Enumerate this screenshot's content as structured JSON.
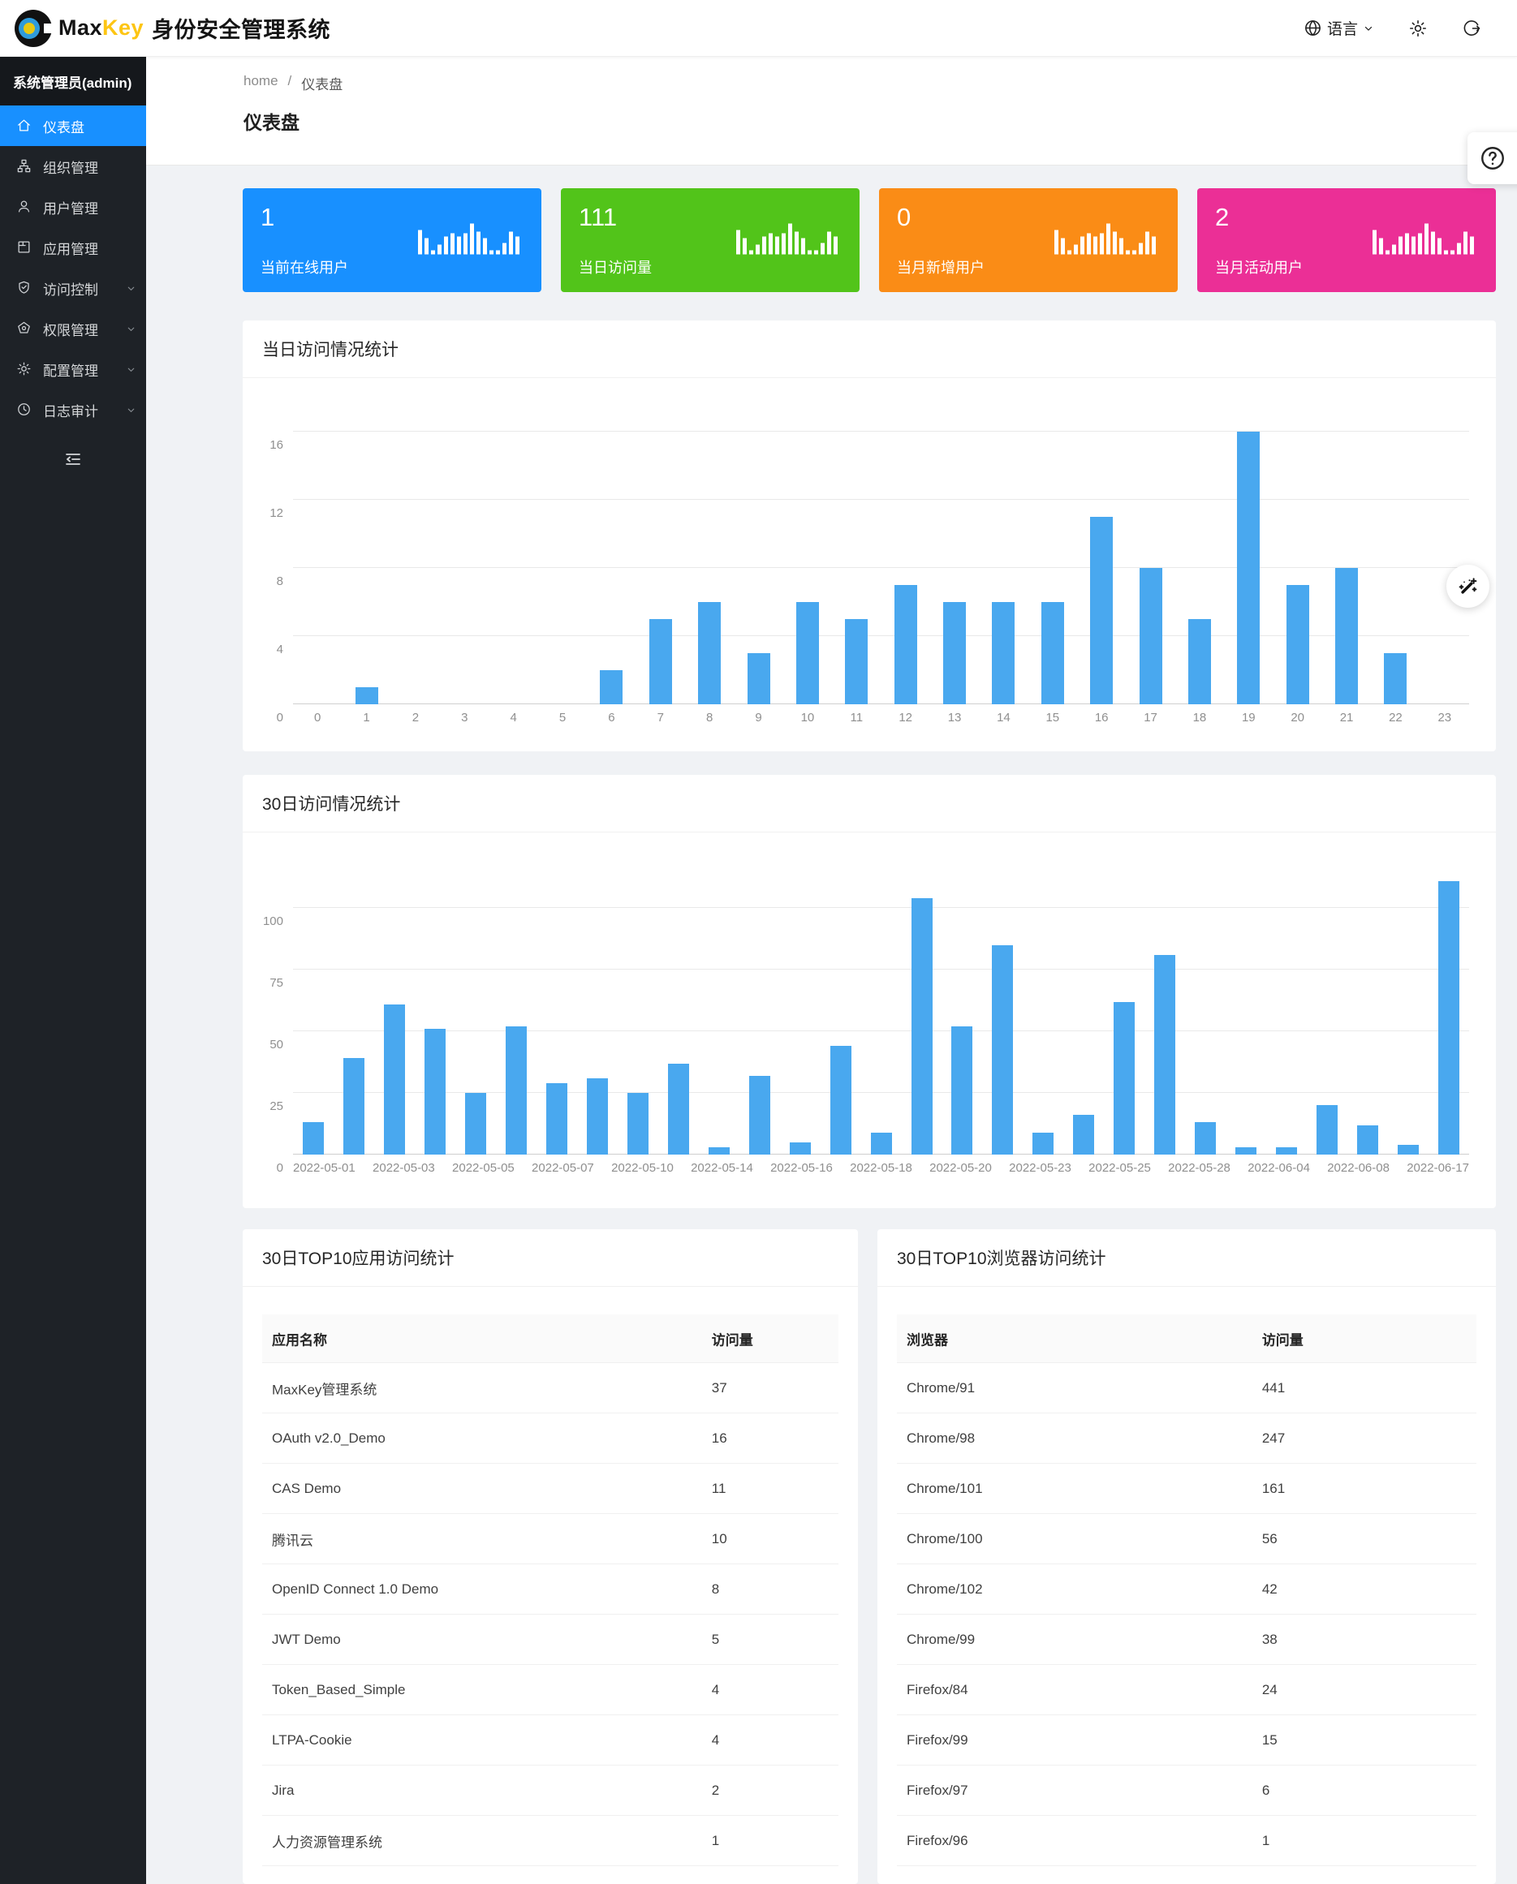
{
  "header": {
    "brand": {
      "max": "Max",
      "key": "Key",
      "product": "身份安全管理系统"
    },
    "actions": {
      "language_label": "语言",
      "language_icon": "globe-icon",
      "language_caret_icon": "chevron-down-icon",
      "settings_icon": "gear-icon",
      "logout_icon": "logout-icon"
    }
  },
  "sidebar": {
    "admin_label": "系统管理员(admin)",
    "items": [
      {
        "label": "仪表盘",
        "icon": "home-icon",
        "active": true,
        "has_children": false
      },
      {
        "label": "组织管理",
        "icon": "cluster-icon",
        "active": false,
        "has_children": false
      },
      {
        "label": "用户管理",
        "icon": "user-icon",
        "active": false,
        "has_children": false
      },
      {
        "label": "应用管理",
        "icon": "appstore-icon",
        "active": false,
        "has_children": false
      },
      {
        "label": "访问控制",
        "icon": "shield-icon",
        "active": false,
        "has_children": true
      },
      {
        "label": "权限管理",
        "icon": "permission-icon",
        "active": false,
        "has_children": true
      },
      {
        "label": "配置管理",
        "icon": "gear-icon",
        "active": false,
        "has_children": true
      },
      {
        "label": "日志审计",
        "icon": "clock-icon",
        "active": false,
        "has_children": true
      }
    ],
    "collapse_icon": "menu-fold-icon"
  },
  "breadcrumb": {
    "home": "home",
    "separator": "/",
    "current": "仪表盘"
  },
  "page_title": "仪表盘",
  "stat_cards": [
    {
      "value": "1",
      "label": "当前在线用户",
      "color": "#1890ff",
      "icon": "mini-bar-chart-icon"
    },
    {
      "value": "111",
      "label": "当日访问量",
      "color": "#52c41a",
      "icon": "mini-bar-chart-icon"
    },
    {
      "value": "0",
      "label": "当月新增用户",
      "color": "#fa8c16",
      "icon": "mini-bar-chart-icon"
    },
    {
      "value": "2",
      "label": "当月活动用户",
      "color": "#eb2f96",
      "icon": "mini-bar-chart-icon"
    }
  ],
  "chart_data": [
    {
      "type": "bar",
      "title": "当日访问情况统计",
      "xlabel": "",
      "ylabel": "",
      "categories": [
        "0",
        "1",
        "2",
        "3",
        "4",
        "5",
        "6",
        "7",
        "8",
        "9",
        "10",
        "11",
        "12",
        "13",
        "14",
        "15",
        "16",
        "17",
        "18",
        "19",
        "20",
        "21",
        "22",
        "23"
      ],
      "values": [
        0,
        1,
        0,
        0,
        0,
        0,
        2,
        5,
        6,
        3,
        6,
        5,
        7,
        6,
        6,
        6,
        11,
        8,
        5,
        16,
        7,
        8,
        3,
        0
      ],
      "yticks": [
        0,
        4,
        8,
        12,
        16
      ],
      "ylim": [
        0,
        16
      ],
      "grid": true,
      "legend": "none",
      "bar_color": "#49a8ef"
    },
    {
      "type": "bar",
      "title": "30日访问情况统计",
      "xlabel": "",
      "ylabel": "",
      "values": [
        13,
        39,
        61,
        51,
        25,
        52,
        29,
        31,
        25,
        37,
        3,
        32,
        5,
        44,
        9,
        104,
        52,
        85,
        9,
        16,
        62,
        81,
        13,
        3,
        3,
        20,
        12,
        4,
        111
      ],
      "x_tick_labels": [
        "2022-05-01",
        "2022-05-03",
        "2022-05-05",
        "2022-05-07",
        "2022-05-10",
        "2022-05-14",
        "2022-05-16",
        "2022-05-18",
        "2022-05-20",
        "2022-05-23",
        "2022-05-25",
        "2022-05-28",
        "2022-06-04",
        "2022-06-08",
        "2022-06-17"
      ],
      "x_tick_every": 2,
      "yticks": [
        0,
        25,
        50,
        75,
        100
      ],
      "ylim": [
        0,
        115
      ],
      "grid": true,
      "legend": "none",
      "bar_color": "#49a8ef"
    }
  ],
  "tables": [
    {
      "title": "30日TOP10应用访问统计",
      "headers": [
        "应用名称",
        "访问量"
      ],
      "value_col_pct": 78,
      "rows": [
        {
          "name": "MaxKey管理系统",
          "value": "37"
        },
        {
          "name": "OAuth v2.0_Demo",
          "value": "16"
        },
        {
          "name": "CAS Demo",
          "value": "11"
        },
        {
          "name": "腾讯云",
          "value": "10"
        },
        {
          "name": "OpenID Connect 1.0 Demo",
          "value": "8"
        },
        {
          "name": "JWT Demo",
          "value": "5"
        },
        {
          "name": "Token_Based_Simple",
          "value": "4"
        },
        {
          "name": "LTPA-Cookie",
          "value": "4"
        },
        {
          "name": "Jira",
          "value": "2"
        },
        {
          "name": "人力资源管理系统",
          "value": "1"
        }
      ]
    },
    {
      "title": "30日TOP10浏览器访问统计",
      "headers": [
        "浏览器",
        "访问量"
      ],
      "value_col_pct": 63,
      "rows": [
        {
          "name": "Chrome/91",
          "value": "441"
        },
        {
          "name": "Chrome/98",
          "value": "247"
        },
        {
          "name": "Chrome/101",
          "value": "161"
        },
        {
          "name": "Chrome/100",
          "value": "56"
        },
        {
          "name": "Chrome/102",
          "value": "42"
        },
        {
          "name": "Chrome/99",
          "value": "38"
        },
        {
          "name": "Firefox/84",
          "value": "24"
        },
        {
          "name": "Firefox/99",
          "value": "15"
        },
        {
          "name": "Firefox/97",
          "value": "6"
        },
        {
          "name": "Firefox/96",
          "value": "1"
        }
      ]
    }
  ],
  "floating": {
    "help_icon": "question-circle-icon",
    "theme_icon": "magic-wand-icon"
  }
}
